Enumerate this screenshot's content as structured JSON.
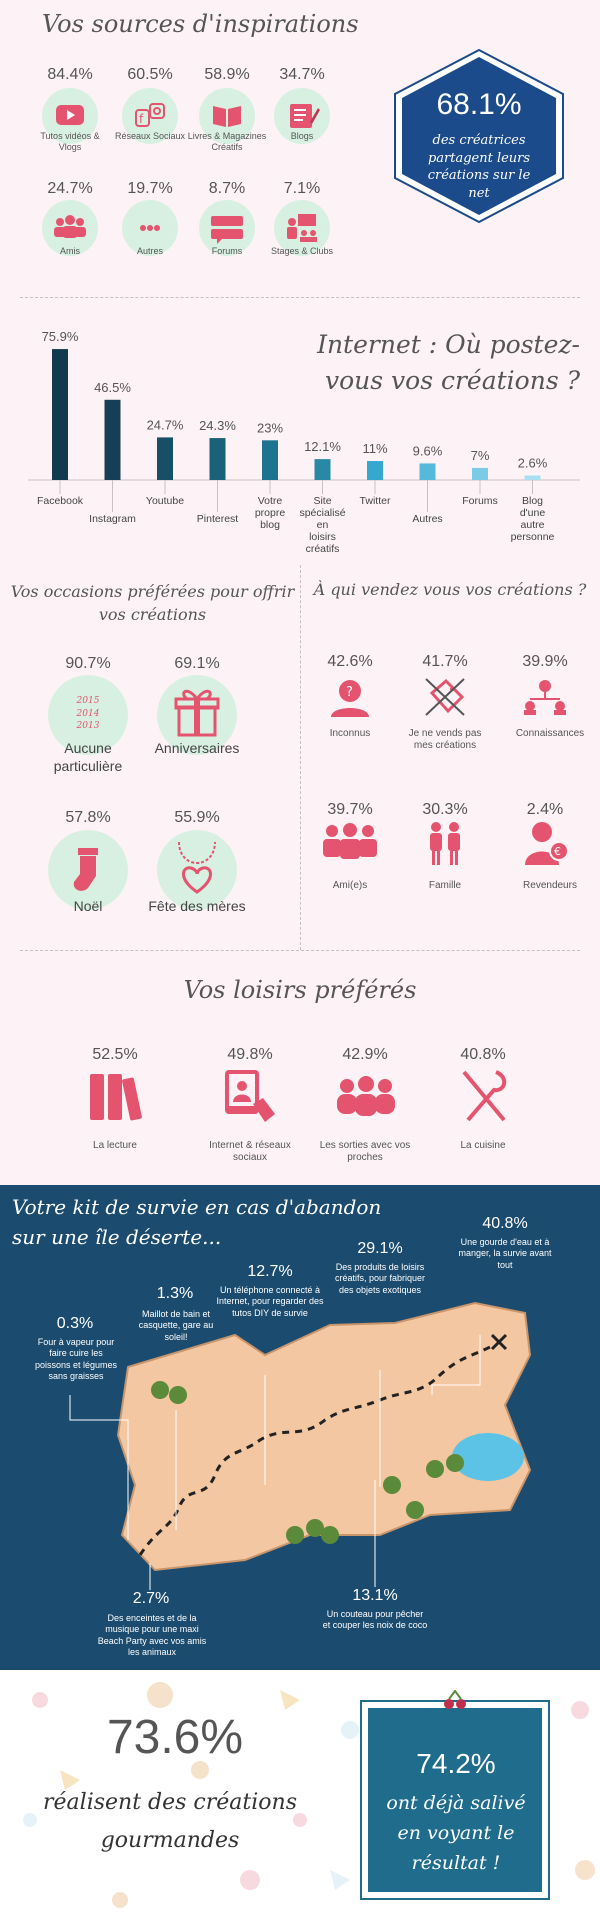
{
  "section1": {
    "title": "Vos sources d'inspirations",
    "items": [
      {
        "pct": "84.4%",
        "label": "Tutos vidéos & Vlogs",
        "icon": "youtube-icon"
      },
      {
        "pct": "60.5%",
        "label": "Réseaux Sociaux",
        "icon": "social-media-icon"
      },
      {
        "pct": "58.9%",
        "label": "Livres & Magazines Créatifs",
        "icon": "book-icon"
      },
      {
        "pct": "34.7%",
        "label": "Blogs",
        "icon": "blog-icon"
      },
      {
        "pct": "24.7%",
        "label": "Amis",
        "icon": "friends-icon"
      },
      {
        "pct": "19.7%",
        "label": "Autres",
        "icon": "dots-icon"
      },
      {
        "pct": "8.7%",
        "label": "Forums",
        "icon": "forum-icon"
      },
      {
        "pct": "7.1%",
        "label": "Stages & Clubs",
        "icon": "classroom-icon"
      }
    ],
    "hex_pct": "68.1%",
    "hex_text": "des créatrices partagent leurs créations sur le net"
  },
  "chart_data": {
    "type": "bar",
    "title": "Internet : Où postez-vous vos créations ?",
    "categories": [
      "Facebook",
      "Instagram",
      "Youtube",
      "Pinterest",
      "Votre propre blog",
      "Site spécialisé en loisirs créatifs",
      "Twitter",
      "Autres",
      "Forums",
      "Blog d'une autre personne"
    ],
    "values": [
      75.9,
      46.5,
      24.7,
      24.3,
      23,
      12.1,
      11,
      9.6,
      7,
      2.6
    ],
    "value_labels": [
      "75.9%",
      "46.5%",
      "24.7%",
      "24.3%",
      "23%",
      "12.1%",
      "11%",
      "9.6%",
      "7%",
      "2.6%"
    ],
    "colors": [
      "#123a4d",
      "#153f57",
      "#175066",
      "#196277",
      "#1c7490",
      "#2988a6",
      "#35a8cf",
      "#56b9dc",
      "#7ccbe6",
      "#a9dff1"
    ],
    "ylim": [
      0,
      80
    ],
    "grid": false
  },
  "section3": {
    "left_title": "Vos occasions préférées pour offrir vos créations",
    "occasions": [
      {
        "pct": "90.7%",
        "label": "Aucune particulière",
        "icon": "calendar-years-icon",
        "years": [
          "2015",
          "2014",
          "2013"
        ]
      },
      {
        "pct": "69.1%",
        "label": "Anniversaires",
        "icon": "gift-icon"
      },
      {
        "pct": "57.8%",
        "label": "Noël",
        "icon": "stocking-icon"
      },
      {
        "pct": "55.9%",
        "label": "Fête des mères",
        "icon": "necklace-icon"
      }
    ],
    "right_title": "À qui vendez vous vos créations ?",
    "buyers": [
      {
        "pct": "42.6%",
        "label": "Inconnus",
        "icon": "unknown-person-icon"
      },
      {
        "pct": "41.7%",
        "label": "Je ne vends pas mes créations",
        "icon": "no-sale-icon"
      },
      {
        "pct": "39.9%",
        "label": "Connaissances",
        "icon": "network-icon"
      },
      {
        "pct": "39.7%",
        "label": "Ami(e)s",
        "icon": "friends-icon"
      },
      {
        "pct": "30.3%",
        "label": "Famille",
        "icon": "family-icon"
      },
      {
        "pct": "2.4%",
        "label": "Revendeurs",
        "icon": "reseller-icon"
      }
    ]
  },
  "section4": {
    "title": "Vos loisirs préférés",
    "items": [
      {
        "pct": "52.5%",
        "label": "La lecture",
        "icon": "books-icon"
      },
      {
        "pct": "49.8%",
        "label": "Internet & réseaux sociaux",
        "icon": "tablet-icon"
      },
      {
        "pct": "42.9%",
        "label": "Les sorties avec vos proches",
        "icon": "group-icon"
      },
      {
        "pct": "40.8%",
        "label": "La cuisine",
        "icon": "kitchen-utensils-icon"
      }
    ]
  },
  "section5": {
    "title_line1": "Votre kit de survie en cas d'abandon",
    "title_line2": "sur une île déserte...",
    "items": [
      {
        "pct": "0.3%",
        "label": "Four à vapeur pour faire cuire les poissons et légumes sans graisses"
      },
      {
        "pct": "1.3%",
        "label": "Maillot de bain et casquette, gare au soleil!"
      },
      {
        "pct": "12.7%",
        "label": "Un téléphone connecté à Internet, pour regarder des tutos DIY de survie"
      },
      {
        "pct": "29.1%",
        "label": "Des produits de loisirs créatifs, pour fabriquer des objets exotiques"
      },
      {
        "pct": "40.8%",
        "label": "Une gourde d'eau et à manger, la survie avant tout"
      },
      {
        "pct": "2.7%",
        "label": "Des enceintes et de la musique pour une maxi Beach Party avec vos amis les animaux"
      },
      {
        "pct": "13.1%",
        "label": "Un couteau pour pêcher et couper les noix de coco"
      }
    ]
  },
  "section6": {
    "left_pct": "73.6%",
    "left_text1": "réalisent des créations",
    "left_text2": "gourmandes",
    "right_pct": "74.2%",
    "right_text1": "ont déjà salivé",
    "right_text2": "en voyant le",
    "right_text3": "résultat !"
  }
}
